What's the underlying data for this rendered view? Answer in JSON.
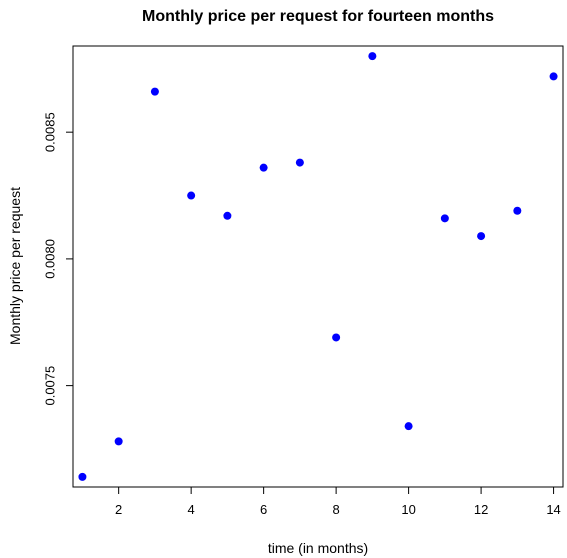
{
  "chart_data": {
    "type": "scatter",
    "title": "Monthly price per request for fourteen months",
    "xlabel": "time (in months)",
    "ylabel": "Monthly price per request",
    "x": [
      1,
      2,
      3,
      4,
      5,
      6,
      7,
      8,
      9,
      10,
      11,
      12,
      13,
      14
    ],
    "y": [
      0.00714,
      0.00728,
      0.00866,
      0.00825,
      0.00817,
      0.00836,
      0.00838,
      0.00769,
      0.0088,
      0.00734,
      0.00816,
      0.00809,
      0.00819,
      0.00872
    ],
    "xlim": [
      0.74,
      14.26
    ],
    "ylim": [
      0.0071,
      0.00884
    ],
    "xticks": [
      2,
      4,
      6,
      8,
      10,
      12,
      14
    ],
    "xtick_labels": [
      "2",
      "4",
      "6",
      "8",
      "10",
      "12",
      "14"
    ],
    "yticks": [
      0.0075,
      0.008,
      0.0085
    ],
    "ytick_labels": [
      "0.0075",
      "0.0080",
      "0.0085"
    ],
    "point_color": "#0000ff",
    "grid": false,
    "legend": "none"
  }
}
